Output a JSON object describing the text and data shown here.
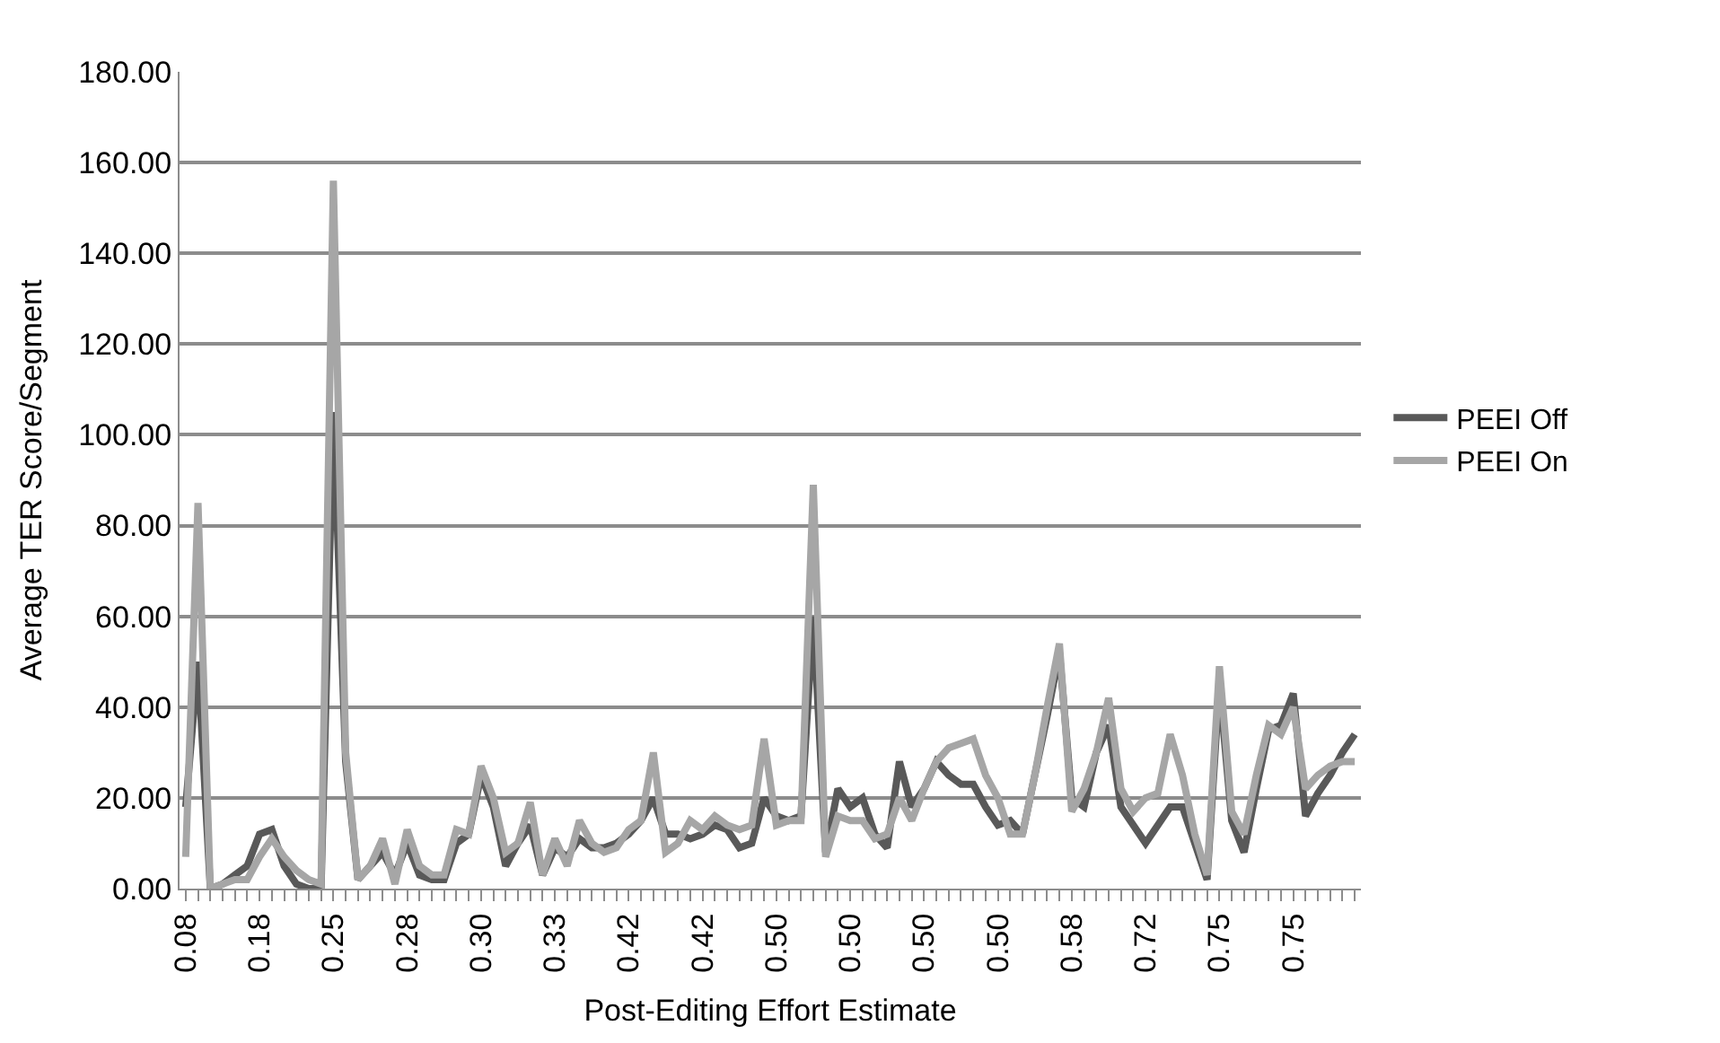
{
  "chart_data": {
    "type": "line",
    "xlabel": "Post-Editing Effort Estimate",
    "ylabel": "Average TER Score/Segment",
    "categories": [
      "0.08",
      null,
      null,
      null,
      null,
      null,
      "0.18",
      null,
      null,
      null,
      null,
      null,
      "0.25",
      null,
      null,
      null,
      null,
      null,
      "0.28",
      null,
      null,
      null,
      null,
      null,
      "0.30",
      null,
      null,
      null,
      null,
      null,
      "0.33",
      null,
      null,
      null,
      null,
      null,
      "0.42",
      null,
      null,
      null,
      null,
      null,
      "0.42",
      null,
      null,
      null,
      null,
      null,
      "0.50",
      null,
      null,
      null,
      null,
      null,
      "0.50",
      null,
      null,
      null,
      null,
      null,
      "0.50",
      null,
      null,
      null,
      null,
      null,
      "0.50",
      null,
      null,
      null,
      null,
      null,
      "0.58",
      null,
      null,
      null,
      null,
      null,
      "0.72",
      null,
      null,
      null,
      null,
      null,
      "0.75",
      null,
      null,
      null,
      null,
      null,
      "0.75",
      null,
      null,
      null,
      null,
      null
    ],
    "series": [
      {
        "name": "PEEI Off",
        "color": "#595959",
        "values": [
          18,
          50,
          0,
          1,
          3,
          5,
          12,
          13,
          5,
          1,
          0,
          0,
          105,
          28,
          2,
          5,
          8,
          3,
          10,
          3,
          2,
          2,
          10,
          12,
          25,
          18,
          5,
          10,
          14,
          3,
          9,
          7,
          11,
          9,
          9,
          10,
          12,
          15,
          20,
          12,
          12,
          11,
          12,
          14,
          13,
          9,
          10,
          20,
          16,
          15,
          16,
          60,
          8,
          22,
          18,
          20,
          12,
          9,
          28,
          18,
          22,
          28,
          25,
          23,
          23,
          18,
          14,
          15,
          12,
          25,
          38,
          52,
          20,
          18,
          30,
          36,
          18,
          14,
          10,
          14,
          18,
          18,
          10,
          2,
          45,
          15,
          8,
          22,
          35,
          36,
          43,
          16,
          21,
          25,
          30,
          34
        ]
      },
      {
        "name": "PEEI On",
        "color": "#a6a6a6",
        "values": [
          7,
          85,
          0,
          1,
          2,
          2,
          7,
          11,
          7,
          4,
          2,
          1,
          156,
          30,
          2,
          5,
          11,
          1,
          13,
          5,
          3,
          3,
          13,
          12,
          27,
          20,
          8,
          10,
          19,
          3,
          11,
          5,
          15,
          10,
          8,
          9,
          13,
          15,
          30,
          8,
          10,
          15,
          13,
          16,
          14,
          13,
          14,
          33,
          14,
          15,
          15,
          89,
          7,
          16,
          15,
          15,
          11,
          12,
          20,
          15,
          22,
          28,
          31,
          32,
          33,
          25,
          20,
          12,
          12,
          25,
          40,
          54,
          17,
          22,
          30,
          42,
          22,
          17,
          20,
          21,
          34,
          25,
          12,
          3,
          49,
          17,
          12,
          25,
          36,
          34,
          40,
          22,
          25,
          27,
          28,
          28
        ]
      }
    ],
    "ylim": [
      0,
      180
    ],
    "yticks": [
      {
        "value": 0,
        "label": "0.00"
      },
      {
        "value": 20,
        "label": "20.00"
      },
      {
        "value": 40,
        "label": "40.00"
      },
      {
        "value": 60,
        "label": "60.00"
      },
      {
        "value": 80,
        "label": "80.00"
      },
      {
        "value": 100,
        "label": "100.00"
      },
      {
        "value": 120,
        "label": "120.00"
      },
      {
        "value": 140,
        "label": "140.00"
      },
      {
        "value": 160,
        "label": "160.00"
      },
      {
        "value": 180,
        "label": "180.00"
      }
    ],
    "grid": "y",
    "legend": "right",
    "marker": "none",
    "line_style": "solid"
  }
}
